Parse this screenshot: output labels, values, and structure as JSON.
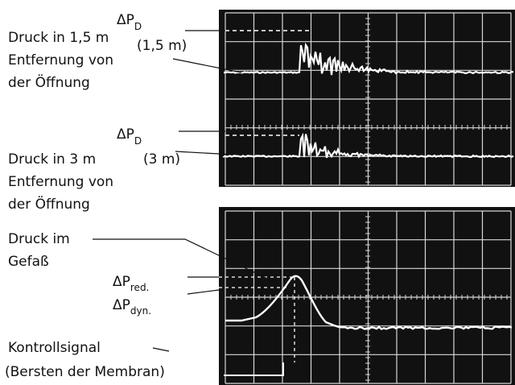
{
  "upper_panel": {
    "trace1_symbol": "ΔP",
    "trace1_subscript": "D",
    "trace1_distance": "(1,5 m)",
    "trace1_label_lines": [
      "Druck in 1,5 m",
      "Entfernung von",
      "der Öffnung"
    ],
    "trace2_symbol": "ΔP",
    "trace2_subscript": "D",
    "trace2_distance": "(3 m)",
    "trace2_label_lines": [
      "Druck in 3 m",
      "Entfernung von",
      "der Öffnung"
    ]
  },
  "lower_panel": {
    "vessel_label_lines": [
      "Druck im",
      "Gefaß"
    ],
    "pred_symbol": "ΔP",
    "pred_subscript": "red.",
    "pdyn_symbol": "ΔP",
    "pdyn_subscript": "dyn.",
    "control_label_lines": [
      "Kontrollsignal",
      "(Bersten der Membran)"
    ]
  },
  "colors": {
    "screen": "#111111",
    "grid": "#d8d8d8",
    "trace": "#ffffff",
    "ink": "#111111"
  }
}
